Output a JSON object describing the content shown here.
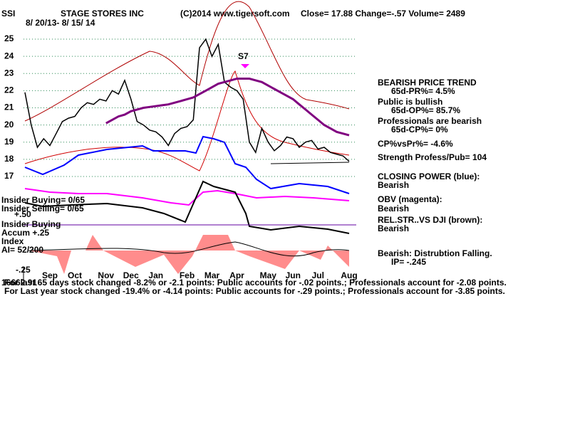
{
  "header": {
    "ticker": "SSI",
    "company": "STAGE STORES INC",
    "copyright": "(C)2014 www.tigersoft.com",
    "quote": "Close=  17.88  Change=-.57 Volume= 2489",
    "date_range": "8/ 20/13- 8/ 15/ 14"
  },
  "chart_data": {
    "type": "line",
    "categories": [
      null,
      null,
      null,
      null,
      "Sep",
      null,
      null,
      null,
      "Oct",
      null,
      null,
      null,
      null,
      "Nov",
      null,
      null,
      null,
      "Dec",
      null,
      null,
      null,
      "Jan",
      null,
      null,
      null,
      null,
      "Feb",
      null,
      null,
      null,
      "Mar",
      null,
      null,
      null,
      "Apr",
      null,
      null,
      null,
      null,
      "May",
      null,
      null,
      null,
      "Jun",
      null,
      null,
      null,
      "Jul",
      null,
      null,
      null,
      null,
      "Aug"
    ],
    "series": [
      {
        "name": "Close",
        "color": "#000000",
        "values": [
          21.9,
          20,
          18.7,
          19.2,
          18.8,
          19.5,
          20.2,
          20.4,
          20.5,
          21,
          21.3,
          21.2,
          21.5,
          21.4,
          22,
          21.8,
          22.6,
          21.5,
          20.2,
          20,
          19.7,
          19.6,
          19.3,
          18.8,
          19.5,
          19.8,
          19.9,
          20.3,
          24.5,
          25,
          24,
          24.7,
          22.5,
          22.2,
          22,
          21.5,
          19,
          18.4,
          19.8,
          19,
          18.5,
          18.8,
          19.3,
          19.2,
          18.7,
          19,
          19.1,
          18.6,
          18.7,
          18.4,
          18.3,
          18.2,
          17.88
        ]
      },
      {
        "name": "65-day MA",
        "color": "#800080",
        "values": [
          null,
          null,
          null,
          null,
          null,
          null,
          null,
          null,
          null,
          null,
          null,
          null,
          null,
          20.1,
          20.3,
          20.5,
          20.6,
          20.8,
          20.9,
          21,
          21.05,
          21.1,
          21.15,
          21.2,
          21.3,
          21.4,
          21.5,
          21.6,
          21.8,
          22,
          22.2,
          22.4,
          22.5,
          22.6,
          22.7,
          22.7,
          22.7,
          22.6,
          22.5,
          22.3,
          22.1,
          21.9,
          21.7,
          21.5,
          21.2,
          20.9,
          20.6,
          20.3,
          20,
          19.8,
          19.6,
          19.5,
          19.4
        ]
      }
    ],
    "ylim": [
      16.5,
      25.5
    ],
    "yticks": [
      17,
      18,
      19,
      20,
      21,
      22,
      23,
      24,
      25
    ],
    "grid": true
  },
  "annotations": {
    "signal": "S7",
    "insider_buying": "Insider Buying= 0/65",
    "insider_selling": "Insider Selling= 0/65",
    "plus50": "+.50",
    "insider_buying_line": "Insider Buying",
    "accum": "Accum  +.25",
    "index": "Index",
    "ai": "AI= 52/200",
    "minus25": "-.25",
    "dji": "16662.91"
  },
  "right_panel": [
    "BEARISH PRICE TREND",
    "65d-PR%= 4.5%",
    "Public is bullish",
    "65d-OP%= 85.7%",
    "Professionals are bearish",
    "65d-CP%= 0%",
    "CP%vsPr%= -4.6%",
    "Strength Profess/Pub= 104",
    "CLOSING POWER (blue):",
    "Bearish",
    "OBV (magenta):",
    "Bearish",
    "REL.STR..VS DJI (brown):",
    "Bearish",
    "Bearish: Distrubtion Falling.",
    "IP= -.245"
  ],
  "footer": [
    "For last 65 days stock changed -8.2% or -2.1 points:  Public accounts for -.02 points.;  Professionals account for -2.08 points.",
    "For Last year stock changed -19.4% or -4.14 points:  Public accounts for -.29 points.;  Professionals account for -3.85 points."
  ]
}
